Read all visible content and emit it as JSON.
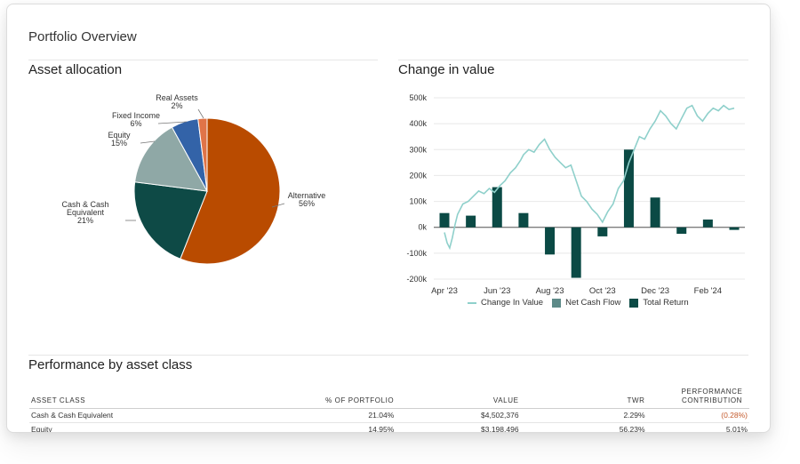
{
  "page_title": "Portfolio Overview",
  "asset_allocation": {
    "title": "Asset allocation",
    "slices": [
      {
        "name": "Alternative",
        "pct": "56%",
        "value": 56,
        "color": "#b94b00"
      },
      {
        "name_lines": [
          "Cash & Cash",
          "Equivalent"
        ],
        "pct": "21%",
        "value": 21,
        "color": "#0e4a46"
      },
      {
        "name": "Equity",
        "pct": "15%",
        "value": 15,
        "color": "#8fa8a6"
      },
      {
        "name": "Fixed Income",
        "pct": "6%",
        "value": 6,
        "color": "#3363a8"
      },
      {
        "name": "Real Assets",
        "pct": "2%",
        "value": 2,
        "color": "#e07448"
      }
    ]
  },
  "chart_data": {
    "type": "bar",
    "title": "Change in value",
    "y_ticks": [
      "500k",
      "400k",
      "300k",
      "200k",
      "100k",
      "0k",
      "-100k",
      "-200k"
    ],
    "ylim": [
      -200000,
      500000
    ],
    "x_ticks": [
      "Apr '23",
      "Jun '23",
      "Aug '23",
      "Oct '23",
      "Dec '23",
      "Feb '24"
    ],
    "series": [
      {
        "name": "Total Return",
        "kind": "bar",
        "color": "#0b4a45",
        "months": [
          "Apr '23",
          "May '23",
          "Jun '23",
          "Jul '23",
          "Aug '23",
          "Sep '23",
          "Oct '23",
          "Nov '23",
          "Dec '23",
          "Jan '24",
          "Feb '24",
          "Mar '24"
        ],
        "values": [
          55000,
          45000,
          155000,
          55000,
          -105000,
          -195000,
          -35000,
          300000,
          115000,
          -25000,
          30000,
          -10000
        ]
      },
      {
        "name": "Net Cash Flow",
        "kind": "bar",
        "color": "#5d8a88",
        "values": []
      },
      {
        "name": "Change In Value",
        "kind": "line",
        "color": "#8fd0cb",
        "x_month_index": [
          0,
          0.1,
          0.2,
          0.3,
          0.4,
          0.5,
          0.7,
          0.9,
          1.1,
          1.3,
          1.5,
          1.7,
          1.9,
          2.1,
          2.3,
          2.5,
          2.7,
          2.9,
          3.0,
          3.2,
          3.4,
          3.6,
          3.8,
          4.0,
          4.2,
          4.4,
          4.6,
          4.8,
          5.0,
          5.2,
          5.4,
          5.6,
          5.8,
          6.0,
          6.2,
          6.4,
          6.6,
          6.8,
          7.0,
          7.2,
          7.4,
          7.6,
          7.8,
          8.0,
          8.2,
          8.4,
          8.6,
          8.8,
          9.0,
          9.2,
          9.4,
          9.6,
          9.8,
          10.0,
          10.2,
          10.4,
          10.6,
          10.8,
          11.0
        ],
        "values": [
          -20000,
          -60000,
          -80000,
          -40000,
          10000,
          50000,
          90000,
          100000,
          120000,
          140000,
          130000,
          150000,
          135000,
          160000,
          180000,
          210000,
          230000,
          260000,
          280000,
          300000,
          290000,
          320000,
          340000,
          300000,
          270000,
          250000,
          230000,
          240000,
          180000,
          120000,
          100000,
          70000,
          50000,
          20000,
          60000,
          90000,
          150000,
          180000,
          250000,
          300000,
          350000,
          340000,
          380000,
          410000,
          450000,
          430000,
          400000,
          380000,
          420000,
          460000,
          470000,
          430000,
          410000,
          440000,
          460000,
          450000,
          470000,
          455000,
          460000
        ]
      }
    ],
    "legend": [
      "Change In Value",
      "Net Cash Flow",
      "Total Return"
    ]
  },
  "performance": {
    "title": "Performance by asset class",
    "headers": [
      "ASSET CLASS",
      "% OF PORTFOLIO",
      "VALUE",
      "TWR",
      "PERFORMANCE CONTRIBUTION"
    ],
    "rows": [
      [
        "Cash & Cash Equivalent",
        "21.04%",
        "$4,502,376",
        "2.29%",
        "(0.28%)"
      ],
      [
        "Equity",
        "14.95%",
        "$3,198,496",
        "56.23%",
        "5.01%"
      ]
    ]
  },
  "colors": {
    "negative_text": "#c45a2c"
  }
}
